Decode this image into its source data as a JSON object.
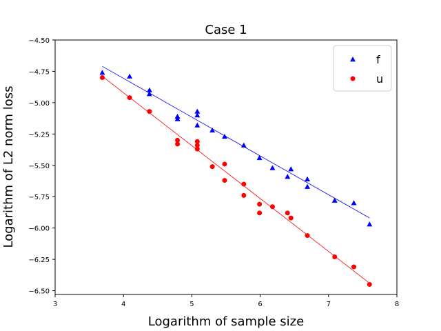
{
  "chart_data": {
    "type": "scatter",
    "title": "Case 1",
    "xlabel": "Logarithm of sample size",
    "ylabel": "Logarithm of L2 norm loss",
    "xlim": [
      3,
      8
    ],
    "ylim": [
      -6.53,
      -4.5
    ],
    "xticks": [
      3,
      4,
      5,
      6,
      7,
      8
    ],
    "xtick_labels": [
      "3",
      "4",
      "5",
      "6",
      "7",
      "8"
    ],
    "yticks": [
      -4.5,
      -4.75,
      -5.0,
      -5.25,
      -5.5,
      -5.75,
      -6.0,
      -6.25,
      -6.5
    ],
    "ytick_labels": [
      "−4.50",
      "−4.75",
      "−5.00",
      "−5.25",
      "−5.50",
      "−5.75",
      "−6.00",
      "−6.25",
      "−6.50"
    ],
    "grid": false,
    "legend_position": "top-right",
    "series": [
      {
        "name": "f",
        "color": "#0000ff",
        "marker": "triangle",
        "x": [
          3.69,
          4.09,
          4.38,
          4.38,
          4.79,
          4.79,
          5.08,
          5.08,
          5.08,
          5.3,
          5.48,
          5.76,
          5.99,
          6.18,
          6.4,
          6.45,
          6.69,
          6.69,
          7.09,
          7.37,
          7.6
        ],
        "y": [
          -4.76,
          -4.79,
          -4.9,
          -4.93,
          -5.11,
          -5.13,
          -5.07,
          -5.1,
          -5.18,
          -5.22,
          -5.27,
          -5.34,
          -5.44,
          -5.52,
          -5.59,
          -5.53,
          -5.61,
          -5.67,
          -5.78,
          -5.8,
          -5.97
        ],
        "fit": {
          "x": [
            3.69,
            7.6
          ],
          "y": [
            -4.71,
            -5.92
          ]
        }
      },
      {
        "name": "u",
        "color": "#ff0000",
        "marker": "circle",
        "x": [
          3.69,
          4.09,
          4.38,
          4.79,
          4.79,
          5.08,
          5.08,
          5.08,
          5.3,
          5.48,
          5.48,
          5.76,
          5.76,
          5.99,
          5.99,
          6.18,
          6.4,
          6.45,
          6.69,
          7.09,
          7.37,
          7.6
        ],
        "y": [
          -4.8,
          -4.96,
          -5.07,
          -5.3,
          -5.33,
          -5.31,
          -5.34,
          -5.37,
          -5.51,
          -5.49,
          -5.62,
          -5.65,
          -5.74,
          -5.81,
          -5.88,
          -5.83,
          -5.88,
          -5.92,
          -6.06,
          -6.23,
          -6.31,
          -6.45
        ],
        "fit": {
          "x": [
            3.69,
            7.6
          ],
          "y": [
            -4.79,
            -6.44
          ]
        }
      }
    ]
  }
}
